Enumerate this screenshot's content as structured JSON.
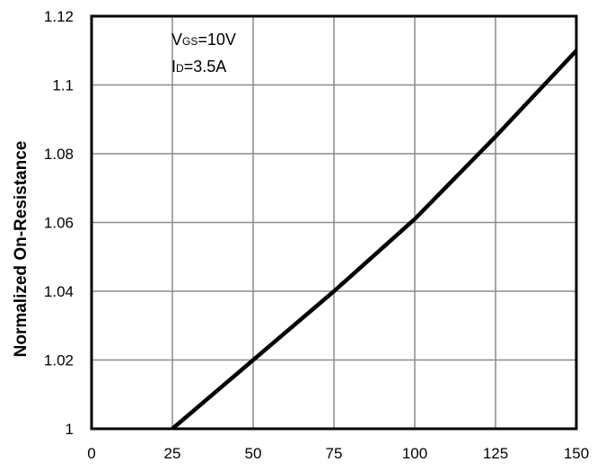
{
  "chart_data": {
    "type": "line",
    "title": "",
    "xlabel": "",
    "ylabel": "Normalized On-Resistance",
    "xlim": [
      0,
      150
    ],
    "ylim": [
      1,
      1.12
    ],
    "x_ticks": [
      "0",
      "25",
      "50",
      "75",
      "100",
      "125",
      "150"
    ],
    "y_ticks": [
      "1",
      "1.02",
      "1.04",
      "1.06",
      "1.08",
      "1.1",
      "1.12"
    ],
    "grid": true,
    "annotations": {
      "vgs_main": "V",
      "vgs_sub": "GS",
      "vgs_value": "=10V",
      "id_main": "I",
      "id_sub": "D",
      "id_value": "=3.5A"
    },
    "series": [
      {
        "x": [
          25,
          50,
          75,
          100,
          125,
          150
        ],
        "y": [
          1.0,
          1.02,
          1.04,
          1.061,
          1.085,
          1.11
        ],
        "color": "#000000"
      }
    ]
  }
}
